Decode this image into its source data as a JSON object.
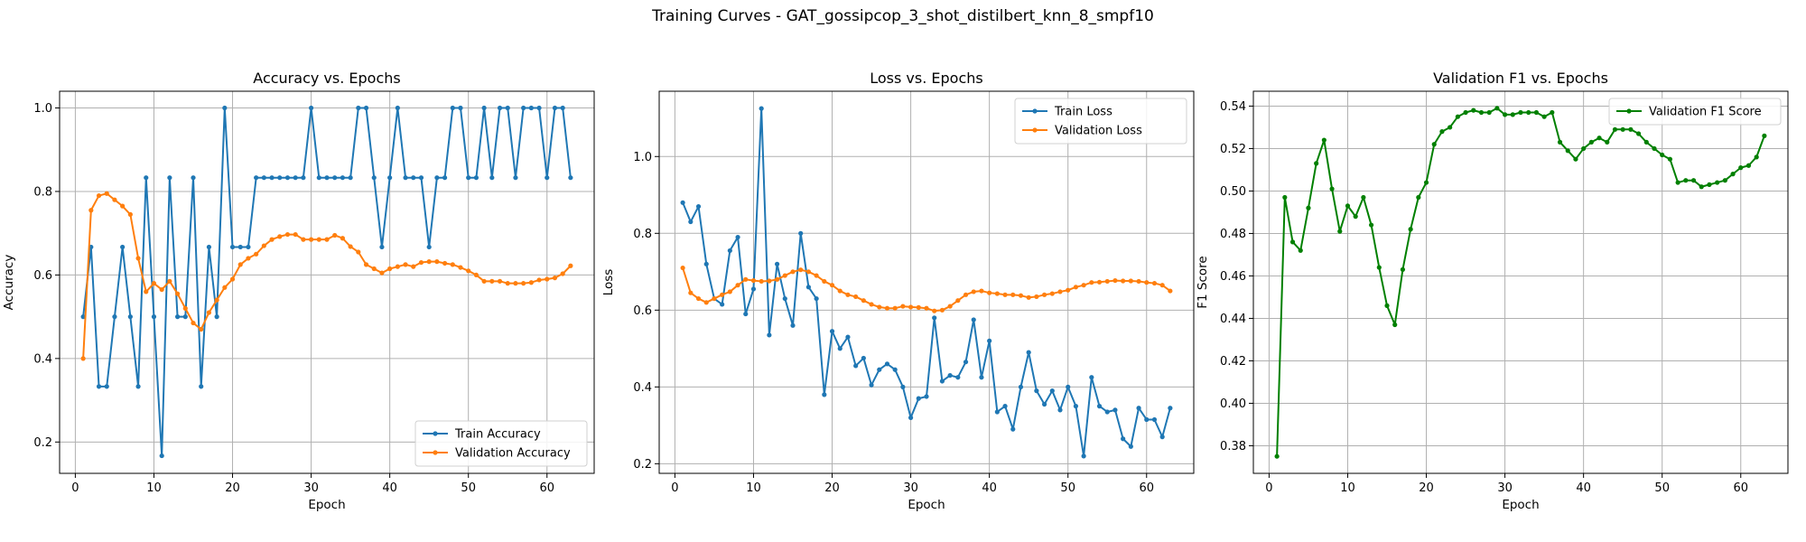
{
  "figure": {
    "suptitle": "Training Curves - GAT_gossipcop_3_shot_distilbert_knn_8_smpf10"
  },
  "chart_data": [
    {
      "type": "line",
      "title": "Accuracy vs. Epochs",
      "xlabel": "Epoch",
      "ylabel": "Accuracy",
      "xlim": [
        -2,
        66
      ],
      "ylim": [
        0.125,
        1.04
      ],
      "xticks": [
        0,
        10,
        20,
        30,
        40,
        50,
        60
      ],
      "yticks": [
        0.2,
        0.4,
        0.6,
        0.8,
        1.0
      ],
      "ytick_labels": [
        "0.2",
        "0.4",
        "0.6",
        "0.8",
        "1.0"
      ],
      "grid": true,
      "legend": "lower right",
      "x": [
        1,
        2,
        3,
        4,
        5,
        6,
        7,
        8,
        9,
        10,
        11,
        12,
        13,
        14,
        15,
        16,
        17,
        18,
        19,
        20,
        21,
        22,
        23,
        24,
        25,
        26,
        27,
        28,
        29,
        30,
        31,
        32,
        33,
        34,
        35,
        36,
        37,
        38,
        39,
        40,
        41,
        42,
        43,
        44,
        45,
        46,
        47,
        48,
        49,
        50,
        51,
        52,
        53,
        54,
        55,
        56,
        57,
        58,
        59,
        60,
        61,
        62,
        63
      ],
      "series": [
        {
          "name": "Train Accuracy",
          "color": "#1f77b4",
          "values": [
            0.5,
            0.667,
            0.333,
            0.333,
            0.5,
            0.667,
            0.5,
            0.333,
            0.833,
            0.5,
            0.167,
            0.833,
            0.5,
            0.5,
            0.833,
            0.333,
            0.667,
            0.5,
            1.0,
            0.667,
            0.667,
            0.667,
            0.833,
            0.833,
            0.833,
            0.833,
            0.833,
            0.833,
            0.833,
            1.0,
            0.833,
            0.833,
            0.833,
            0.833,
            0.833,
            1.0,
            1.0,
            0.833,
            0.667,
            0.833,
            1.0,
            0.833,
            0.833,
            0.833,
            0.667,
            0.833,
            0.833,
            1.0,
            1.0,
            0.833,
            0.833,
            1.0,
            0.833,
            1.0,
            1.0,
            0.833,
            1.0,
            1.0,
            1.0,
            0.833,
            1.0,
            1.0,
            0.833
          ]
        },
        {
          "name": "Validation Accuracy",
          "color": "#ff7f0e",
          "values": [
            0.4,
            0.755,
            0.79,
            0.795,
            0.78,
            0.765,
            0.745,
            0.64,
            0.56,
            0.58,
            0.565,
            0.585,
            0.555,
            0.52,
            0.485,
            0.47,
            0.51,
            0.54,
            0.57,
            0.59,
            0.625,
            0.64,
            0.65,
            0.67,
            0.685,
            0.692,
            0.697,
            0.697,
            0.685,
            0.685,
            0.685,
            0.685,
            0.695,
            0.688,
            0.668,
            0.655,
            0.625,
            0.615,
            0.605,
            0.615,
            0.62,
            0.625,
            0.62,
            0.63,
            0.632,
            0.632,
            0.628,
            0.625,
            0.618,
            0.61,
            0.6,
            0.585,
            0.585,
            0.585,
            0.58,
            0.58,
            0.58,
            0.582,
            0.588,
            0.59,
            0.593,
            0.603,
            0.622
          ]
        }
      ]
    },
    {
      "type": "line",
      "title": "Loss vs. Epochs",
      "xlabel": "Epoch",
      "ylabel": "Loss",
      "xlim": [
        -2,
        66
      ],
      "ylim": [
        0.175,
        1.17
      ],
      "xticks": [
        0,
        10,
        20,
        30,
        40,
        50,
        60
      ],
      "yticks": [
        0.2,
        0.4,
        0.6,
        0.8,
        1.0
      ],
      "ytick_labels": [
        "0.2",
        "0.4",
        "0.6",
        "0.8",
        "1.0"
      ],
      "grid": true,
      "legend": "upper right",
      "x": [
        1,
        2,
        3,
        4,
        5,
        6,
        7,
        8,
        9,
        10,
        11,
        12,
        13,
        14,
        15,
        16,
        17,
        18,
        19,
        20,
        21,
        22,
        23,
        24,
        25,
        26,
        27,
        28,
        29,
        30,
        31,
        32,
        33,
        34,
        35,
        36,
        37,
        38,
        39,
        40,
        41,
        42,
        43,
        44,
        45,
        46,
        47,
        48,
        49,
        50,
        51,
        52,
        53,
        54,
        55,
        56,
        57,
        58,
        59,
        60,
        61,
        62,
        63
      ],
      "series": [
        {
          "name": "Train Loss",
          "color": "#1f77b4",
          "values": [
            0.88,
            0.83,
            0.87,
            0.72,
            0.63,
            0.615,
            0.755,
            0.79,
            0.59,
            0.655,
            1.125,
            0.535,
            0.72,
            0.63,
            0.56,
            0.8,
            0.66,
            0.63,
            0.38,
            0.545,
            0.5,
            0.53,
            0.455,
            0.475,
            0.405,
            0.445,
            0.46,
            0.445,
            0.4,
            0.32,
            0.37,
            0.375,
            0.58,
            0.415,
            0.43,
            0.425,
            0.465,
            0.575,
            0.425,
            0.52,
            0.335,
            0.35,
            0.29,
            0.4,
            0.49,
            0.39,
            0.355,
            0.39,
            0.34,
            0.4,
            0.35,
            0.22,
            0.425,
            0.35,
            0.335,
            0.34,
            0.265,
            0.245,
            0.345,
            0.315,
            0.315,
            0.27,
            0.345
          ]
        },
        {
          "name": "Validation Loss",
          "color": "#ff7f0e",
          "values": [
            0.71,
            0.645,
            0.63,
            0.62,
            0.63,
            0.64,
            0.648,
            0.665,
            0.68,
            0.677,
            0.675,
            0.676,
            0.68,
            0.69,
            0.7,
            0.705,
            0.7,
            0.69,
            0.675,
            0.665,
            0.65,
            0.64,
            0.635,
            0.625,
            0.615,
            0.608,
            0.605,
            0.605,
            0.61,
            0.608,
            0.607,
            0.605,
            0.598,
            0.6,
            0.61,
            0.625,
            0.64,
            0.648,
            0.65,
            0.645,
            0.643,
            0.64,
            0.64,
            0.638,
            0.633,
            0.635,
            0.64,
            0.643,
            0.648,
            0.652,
            0.66,
            0.665,
            0.672,
            0.673,
            0.675,
            0.677,
            0.676,
            0.676,
            0.675,
            0.672,
            0.67,
            0.665,
            0.65
          ]
        }
      ]
    },
    {
      "type": "line",
      "title": "Validation F1 vs. Epochs",
      "xlabel": "Epoch",
      "ylabel": "F1 Score",
      "xlim": [
        -2,
        66
      ],
      "ylim": [
        0.367,
        0.547
      ],
      "xticks": [
        0,
        10,
        20,
        30,
        40,
        50,
        60
      ],
      "yticks": [
        0.38,
        0.4,
        0.42,
        0.44,
        0.46,
        0.48,
        0.5,
        0.52,
        0.54
      ],
      "ytick_labels": [
        "0.38",
        "0.40",
        "0.42",
        "0.44",
        "0.46",
        "0.48",
        "0.50",
        "0.52",
        "0.54"
      ],
      "grid": true,
      "legend": "upper right",
      "x": [
        1,
        2,
        3,
        4,
        5,
        6,
        7,
        8,
        9,
        10,
        11,
        12,
        13,
        14,
        15,
        16,
        17,
        18,
        19,
        20,
        21,
        22,
        23,
        24,
        25,
        26,
        27,
        28,
        29,
        30,
        31,
        32,
        33,
        34,
        35,
        36,
        37,
        38,
        39,
        40,
        41,
        42,
        43,
        44,
        45,
        46,
        47,
        48,
        49,
        50,
        51,
        52,
        53,
        54,
        55,
        56,
        57,
        58,
        59,
        60,
        61,
        62,
        63
      ],
      "series": [
        {
          "name": "Validation F1 Score",
          "color": "#008000",
          "values": [
            0.375,
            0.497,
            0.476,
            0.472,
            0.492,
            0.513,
            0.524,
            0.501,
            0.481,
            0.493,
            0.488,
            0.497,
            0.484,
            0.464,
            0.446,
            0.437,
            0.463,
            0.482,
            0.497,
            0.504,
            0.522,
            0.528,
            0.53,
            0.535,
            0.537,
            0.538,
            0.537,
            0.537,
            0.539,
            0.536,
            0.536,
            0.537,
            0.537,
            0.537,
            0.535,
            0.537,
            0.523,
            0.519,
            0.515,
            0.52,
            0.523,
            0.525,
            0.523,
            0.529,
            0.529,
            0.529,
            0.527,
            0.523,
            0.52,
            0.517,
            0.515,
            0.504,
            0.505,
            0.505,
            0.502,
            0.503,
            0.504,
            0.505,
            0.508,
            0.511,
            0.512,
            0.516,
            0.526
          ]
        }
      ]
    }
  ]
}
